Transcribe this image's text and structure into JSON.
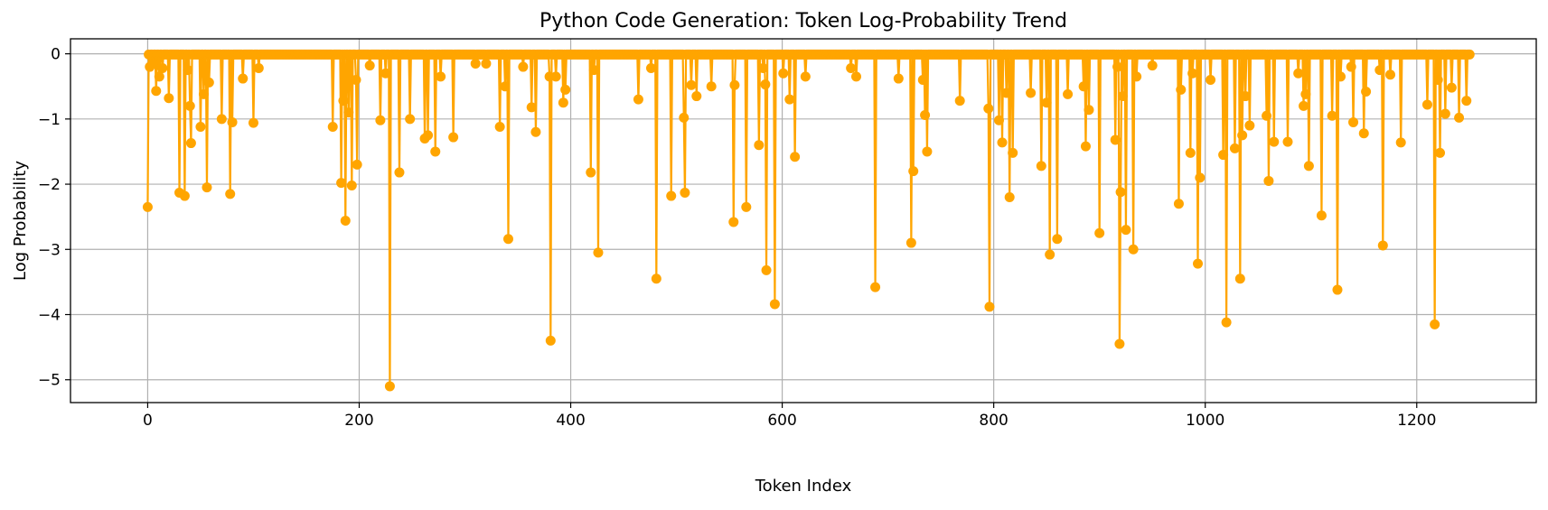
{
  "chart_data": {
    "type": "line",
    "title": "Python Code Generation: Token Log-Probability Trend",
    "xlabel": "Token Index",
    "ylabel": "Log Probability",
    "xlim": [
      -73,
      1313
    ],
    "ylim": [
      -5.35,
      0.23
    ],
    "xticks": [
      0,
      200,
      400,
      600,
      800,
      1000,
      1200
    ],
    "xtick_labels": [
      "0",
      "200",
      "400",
      "600",
      "800",
      "1000",
      "1200"
    ],
    "yticks": [
      0,
      -1,
      -2,
      -3,
      -4,
      -5
    ],
    "ytick_labels": [
      "0",
      "−1",
      "−2",
      "−3",
      "−4",
      "−5"
    ],
    "grid": true,
    "legend": "none",
    "n_tokens": 1251,
    "baseline_value": -0.01,
    "series": [
      {
        "color": "#FFA500",
        "marker": "circle",
        "points": [
          [
            0,
            -2.35
          ],
          [
            2,
            -0.2
          ],
          [
            5,
            -0.15
          ],
          [
            8,
            -0.57
          ],
          [
            11,
            -0.35
          ],
          [
            14,
            -0.22
          ],
          [
            20,
            -0.68
          ],
          [
            30,
            -2.13
          ],
          [
            35,
            -2.18
          ],
          [
            38,
            -0.25
          ],
          [
            40,
            -0.8
          ],
          [
            41,
            -1.37
          ],
          [
            50,
            -1.12
          ],
          [
            53,
            -0.62
          ],
          [
            56,
            -2.05
          ],
          [
            58,
            -0.44
          ],
          [
            70,
            -1.0
          ],
          [
            78,
            -2.15
          ],
          [
            80,
            -1.05
          ],
          [
            90,
            -0.38
          ],
          [
            100,
            -1.06
          ],
          [
            105,
            -0.22
          ],
          [
            175,
            -1.12
          ],
          [
            183,
            -1.98
          ],
          [
            185,
            -0.72
          ],
          [
            187,
            -2.56
          ],
          [
            190,
            -0.9
          ],
          [
            193,
            -2.02
          ],
          [
            197,
            -0.4
          ],
          [
            198,
            -1.7
          ],
          [
            210,
            -0.18
          ],
          [
            220,
            -1.02
          ],
          [
            225,
            -0.3
          ],
          [
            229,
            -5.1
          ],
          [
            238,
            -1.82
          ],
          [
            248,
            -1.0
          ],
          [
            262,
            -1.3
          ],
          [
            265,
            -1.25
          ],
          [
            272,
            -1.5
          ],
          [
            277,
            -0.35
          ],
          [
            289,
            -1.28
          ],
          [
            310,
            -0.15
          ],
          [
            320,
            -0.15
          ],
          [
            333,
            -1.12
          ],
          [
            338,
            -0.5
          ],
          [
            341,
            -2.84
          ],
          [
            355,
            -0.2
          ],
          [
            363,
            -0.82
          ],
          [
            367,
            -1.2
          ],
          [
            380,
            -0.35
          ],
          [
            381,
            -4.4
          ],
          [
            386,
            -0.35
          ],
          [
            393,
            -0.75
          ],
          [
            395,
            -0.55
          ],
          [
            419,
            -1.82
          ],
          [
            422,
            -0.25
          ],
          [
            426,
            -3.05
          ],
          [
            464,
            -0.7
          ],
          [
            476,
            -0.22
          ],
          [
            481,
            -3.45
          ],
          [
            495,
            -2.18
          ],
          [
            507,
            -0.98
          ],
          [
            508,
            -2.13
          ],
          [
            514,
            -0.48
          ],
          [
            519,
            -0.65
          ],
          [
            533,
            -0.5
          ],
          [
            554,
            -2.58
          ],
          [
            555,
            -0.48
          ],
          [
            566,
            -2.35
          ],
          [
            578,
            -1.4
          ],
          [
            582,
            -0.22
          ],
          [
            584,
            -0.47
          ],
          [
            585,
            -3.32
          ],
          [
            593,
            -3.84
          ],
          [
            601,
            -0.3
          ],
          [
            607,
            -0.7
          ],
          [
            612,
            -1.58
          ],
          [
            622,
            -0.35
          ],
          [
            665,
            -0.22
          ],
          [
            670,
            -0.35
          ],
          [
            688,
            -3.58
          ],
          [
            710,
            -0.38
          ],
          [
            722,
            -2.9
          ],
          [
            724,
            -1.8
          ],
          [
            733,
            -0.4
          ],
          [
            735,
            -0.94
          ],
          [
            737,
            -1.5
          ],
          [
            768,
            -0.72
          ],
          [
            795,
            -0.84
          ],
          [
            796,
            -3.88
          ],
          [
            805,
            -1.02
          ],
          [
            808,
            -1.36
          ],
          [
            812,
            -0.6
          ],
          [
            815,
            -2.2
          ],
          [
            818,
            -1.52
          ],
          [
            835,
            -0.6
          ],
          [
            845,
            -1.72
          ],
          [
            850,
            -0.75
          ],
          [
            853,
            -3.08
          ],
          [
            860,
            -2.84
          ],
          [
            870,
            -0.62
          ],
          [
            885,
            -0.5
          ],
          [
            887,
            -1.42
          ],
          [
            890,
            -0.86
          ],
          [
            900,
            -2.75
          ],
          [
            915,
            -1.32
          ],
          [
            917,
            -0.2
          ],
          [
            919,
            -4.45
          ],
          [
            920,
            -2.12
          ],
          [
            922,
            -0.65
          ],
          [
            925,
            -2.7
          ],
          [
            932,
            -3.0
          ],
          [
            935,
            -0.35
          ],
          [
            950,
            -0.18
          ],
          [
            975,
            -2.3
          ],
          [
            977,
            -0.55
          ],
          [
            986,
            -1.52
          ],
          [
            988,
            -0.3
          ],
          [
            993,
            -3.22
          ],
          [
            995,
            -1.9
          ],
          [
            1005,
            -0.4
          ],
          [
            1017,
            -1.55
          ],
          [
            1020,
            -4.12
          ],
          [
            1028,
            -1.45
          ],
          [
            1033,
            -3.45
          ],
          [
            1035,
            -1.25
          ],
          [
            1038,
            -0.65
          ],
          [
            1042,
            -1.1
          ],
          [
            1058,
            -0.95
          ],
          [
            1060,
            -1.95
          ],
          [
            1065,
            -1.35
          ],
          [
            1078,
            -1.35
          ],
          [
            1088,
            -0.3
          ],
          [
            1093,
            -0.8
          ],
          [
            1095,
            -0.62
          ],
          [
            1098,
            -1.72
          ],
          [
            1110,
            -2.48
          ],
          [
            1120,
            -0.95
          ],
          [
            1125,
            -3.62
          ],
          [
            1128,
            -0.35
          ],
          [
            1138,
            -0.2
          ],
          [
            1140,
            -1.05
          ],
          [
            1150,
            -1.22
          ],
          [
            1152,
            -0.58
          ],
          [
            1165,
            -0.25
          ],
          [
            1168,
            -2.94
          ],
          [
            1175,
            -0.32
          ],
          [
            1185,
            -1.36
          ],
          [
            1210,
            -0.78
          ],
          [
            1217,
            -4.15
          ],
          [
            1220,
            -0.4
          ],
          [
            1222,
            -1.52
          ],
          [
            1227,
            -0.92
          ],
          [
            1233,
            -0.52
          ],
          [
            1240,
            -0.98
          ],
          [
            1247,
            -0.72
          ]
        ]
      }
    ]
  }
}
